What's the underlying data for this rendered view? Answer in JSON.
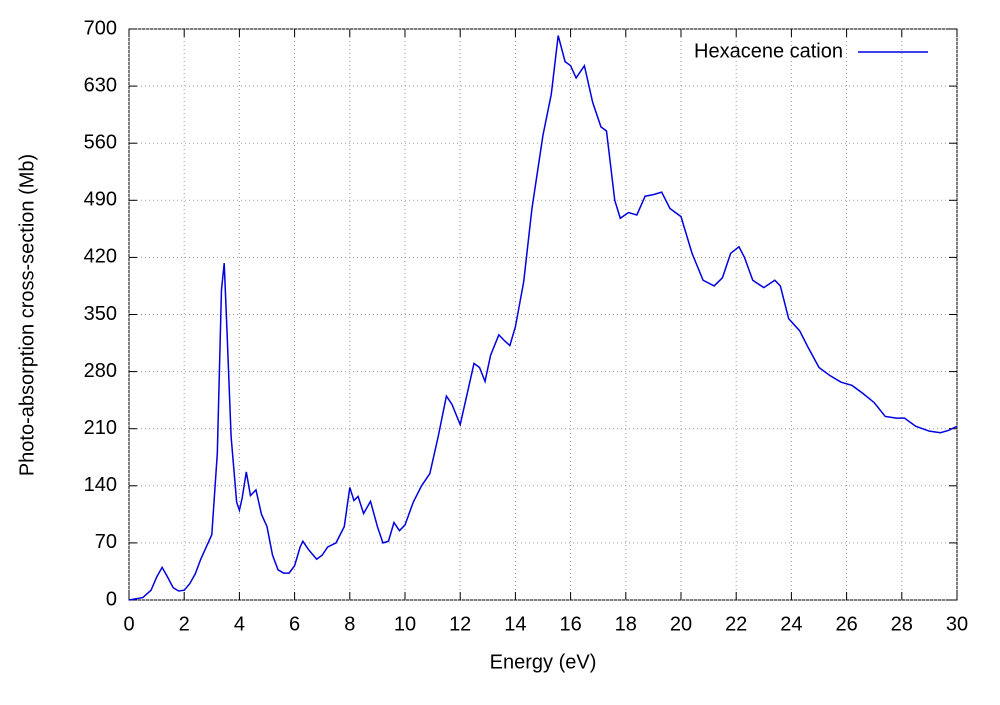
{
  "chart_data": {
    "type": "line",
    "xlabel": "Energy (eV)",
    "ylabel": "Photo-absorption cross-section (Mb)",
    "xlim": [
      0,
      30
    ],
    "xticks": [
      0,
      2,
      4,
      6,
      8,
      10,
      12,
      14,
      16,
      18,
      20,
      22,
      24,
      26,
      28,
      30
    ],
    "ylim": [
      0,
      700
    ],
    "yticks": [
      0,
      70,
      140,
      210,
      280,
      350,
      420,
      490,
      560,
      630,
      700
    ],
    "grid": true,
    "legend": "upper-right",
    "series": [
      {
        "name": "Hexacene cation",
        "color": "#0000e0",
        "x": [
          0,
          0.5,
          0.8,
          1.0,
          1.2,
          1.4,
          1.6,
          1.8,
          2.0,
          2.2,
          2.4,
          2.6,
          2.8,
          3.0,
          3.2,
          3.35,
          3.45,
          3.55,
          3.7,
          3.9,
          4.0,
          4.1,
          4.25,
          4.4,
          4.6,
          4.8,
          5.0,
          5.2,
          5.4,
          5.6,
          5.8,
          6.0,
          6.2,
          6.3,
          6.5,
          6.8,
          7.0,
          7.2,
          7.5,
          7.8,
          8.0,
          8.15,
          8.3,
          8.5,
          8.75,
          9.0,
          9.2,
          9.4,
          9.6,
          9.8,
          10.0,
          10.3,
          10.6,
          10.9,
          11.2,
          11.5,
          11.7,
          12.0,
          12.2,
          12.5,
          12.7,
          12.9,
          13.1,
          13.4,
          13.6,
          13.8,
          14.0,
          14.3,
          14.6,
          15.0,
          15.3,
          15.55,
          15.8,
          16.0,
          16.2,
          16.5,
          16.8,
          17.1,
          17.3,
          17.6,
          17.8,
          18.1,
          18.4,
          18.7,
          19.0,
          19.3,
          19.6,
          20.0,
          20.4,
          20.8,
          21.2,
          21.5,
          21.8,
          22.1,
          22.3,
          22.6,
          23.0,
          23.4,
          23.6,
          23.9,
          24.3,
          24.6,
          25.0,
          25.4,
          25.8,
          26.2,
          26.6,
          27.0,
          27.4,
          27.8,
          28.1,
          28.5,
          29.0,
          29.4,
          29.7,
          30.0
        ],
        "values": [
          0,
          3,
          12,
          28,
          40,
          28,
          15,
          11,
          12,
          20,
          32,
          50,
          65,
          80,
          180,
          380,
          413,
          330,
          200,
          120,
          110,
          125,
          157,
          128,
          135,
          105,
          90,
          55,
          37,
          33,
          33,
          42,
          65,
          72,
          62,
          50,
          55,
          65,
          70,
          90,
          138,
          122,
          127,
          106,
          121,
          90,
          70,
          72,
          95,
          85,
          92,
          120,
          140,
          155,
          200,
          250,
          240,
          215,
          245,
          290,
          285,
          268,
          300,
          325,
          318,
          312,
          335,
          390,
          480,
          570,
          620,
          692,
          660,
          655,
          640,
          655,
          610,
          580,
          575,
          490,
          468,
          475,
          472,
          495,
          497,
          500,
          480,
          470,
          425,
          392,
          385,
          395,
          425,
          433,
          420,
          392,
          383,
          392,
          385,
          345,
          330,
          310,
          285,
          275,
          267,
          263,
          253,
          242,
          225,
          223,
          223,
          213,
          207,
          205,
          208,
          213
        ]
      }
    ]
  }
}
